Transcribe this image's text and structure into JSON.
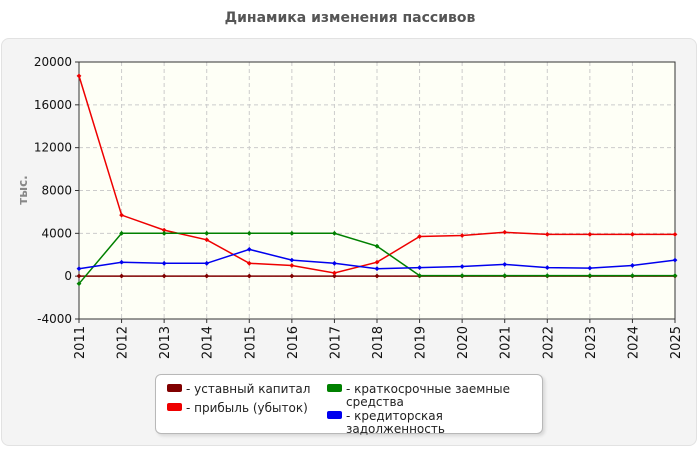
{
  "chart_data": {
    "type": "line",
    "title": "Динамика изменения пассивов",
    "ylabel": "тыс.",
    "xlabel": "",
    "x": [
      "2011",
      "2012",
      "2013",
      "2014",
      "2015",
      "2016",
      "2017",
      "2018",
      "2019",
      "2020",
      "2021",
      "2022",
      "2023",
      "2024",
      "2025"
    ],
    "ylim": [
      -4000,
      20000
    ],
    "yticks": [
      -4000,
      0,
      4000,
      8000,
      12000,
      16000,
      20000
    ],
    "grid": true,
    "legend_position": "bottom",
    "series": [
      {
        "name": "- уставный капитал",
        "color": "#800000",
        "values": [
          10,
          10,
          10,
          10,
          10,
          10,
          10,
          10,
          10,
          10,
          10,
          10,
          10,
          10,
          10
        ]
      },
      {
        "name": "- прибыль (убыток)",
        "color": "#ee0000",
        "values": [
          18700,
          5700,
          4300,
          3400,
          1200,
          1000,
          300,
          1300,
          3700,
          3800,
          4100,
          3900,
          3900,
          3900,
          3900
        ]
      },
      {
        "name": "- краткосрочные заемные средства",
        "color": "#008000",
        "values": [
          -700,
          4000,
          4000,
          4000,
          4000,
          4000,
          4000,
          2800,
          50,
          50,
          50,
          50,
          50,
          50,
          50
        ]
      },
      {
        "name": "- кредиторская задолженность",
        "color": "#0000ee",
        "values": [
          700,
          1300,
          1200,
          1200,
          2500,
          1500,
          1200,
          700,
          800,
          900,
          1100,
          800,
          750,
          1000,
          1500
        ]
      }
    ]
  }
}
